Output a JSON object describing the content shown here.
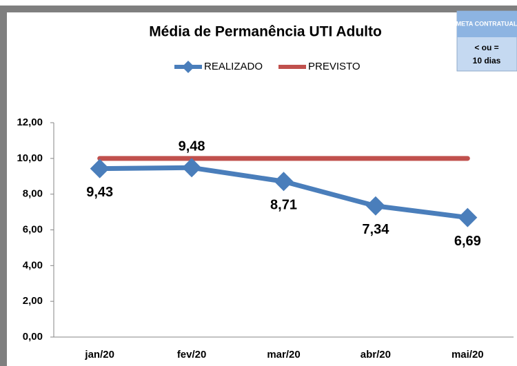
{
  "chart_data": {
    "type": "line",
    "title": "Média de Permanência UTI Adulto",
    "categories": [
      "jan/20",
      "fev/20",
      "mar/20",
      "abr/20",
      "mai/20"
    ],
    "series": [
      {
        "name": "REALIZADO",
        "color": "#4a7ebb",
        "values": [
          9.43,
          9.48,
          8.71,
          7.34,
          6.69
        ],
        "value_labels": [
          "9,43",
          "9,48",
          "8,71",
          "7,34",
          "6,69"
        ],
        "marker": "diamond"
      },
      {
        "name": "PREVISTO",
        "color": "#c0504d",
        "values": [
          10,
          10,
          10,
          10,
          10
        ]
      }
    ],
    "ylim": [
      0,
      12
    ],
    "yticks": [
      {
        "value": 0,
        "label": "0,00"
      },
      {
        "value": 2,
        "label": "2,00"
      },
      {
        "value": 4,
        "label": "4,00"
      },
      {
        "value": 6,
        "label": "6,00"
      },
      {
        "value": 8,
        "label": "8,00"
      },
      {
        "value": 10,
        "label": "10,00"
      },
      {
        "value": 12,
        "label": "12,00"
      }
    ],
    "grid": false,
    "legend": "top",
    "annotation": {
      "title": "META CONTRATUAL",
      "lines": [
        "< ou =",
        "10 dias"
      ]
    }
  }
}
